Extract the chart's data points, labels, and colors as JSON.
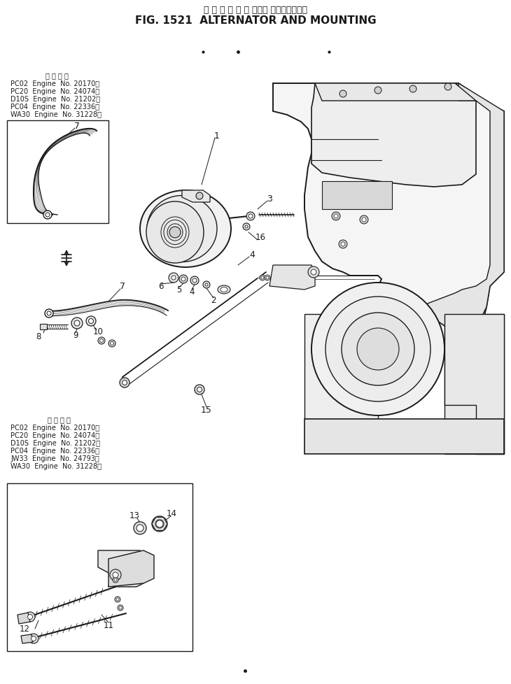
{
  "title_japanese": "オ ル タ ネ ー タ および マウンティング",
  "title_english": "FIG. 1521  ALTERNATOR AND MOUNTING",
  "bg_color": "#ffffff",
  "text_color": "#000000",
  "figure_width": 7.3,
  "figure_height": 9.79,
  "top_note_label": "適 用 号 機",
  "top_note_lines": [
    "PC02  Engine  No. 20170〜",
    "PC20  Engine  No. 24074〜",
    "D10S  Engine  No. 21202〜",
    "PC04  Engine  No. 22336〜",
    "WA30  Engine  No. 31228〜"
  ],
  "bottom_note_label": "適 用 号 機",
  "bottom_note_lines": [
    "PC02  Engine  No. 20170〜",
    "PC20  Engine  No. 24074〜",
    "D10S  Engine  No. 21202〜",
    "PC04  Engine  No. 22336〜",
    "JW33  Engine  No. 24793〜",
    "WA30  Engine  No. 31228〜"
  ]
}
